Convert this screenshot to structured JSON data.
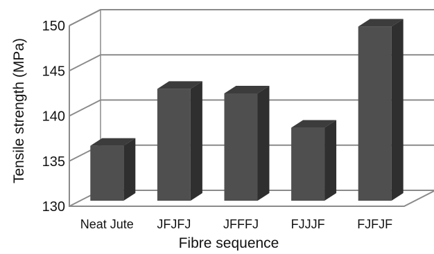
{
  "chart_data": {
    "type": "bar",
    "style": "3d-column",
    "categories": [
      "Neat Jute",
      "JFJFJ",
      "JFFFJ",
      "FJJJF",
      "FJFJF"
    ],
    "values": [
      137,
      143.3,
      142.8,
      139,
      150.2
    ],
    "xlabel": "Fibre sequence",
    "ylabel": "Tensile strength (MPa)",
    "ylim": [
      130,
      150
    ],
    "yticks": [
      130,
      135,
      140,
      145,
      150
    ],
    "grid": true,
    "legend": "none"
  },
  "colors": {
    "bar_front": "#4f4f4f",
    "bar_side": "#2f2f2f",
    "bar_top": "#3c3c3c",
    "grid": "#8a8a8a",
    "background": "#ffffff"
  }
}
